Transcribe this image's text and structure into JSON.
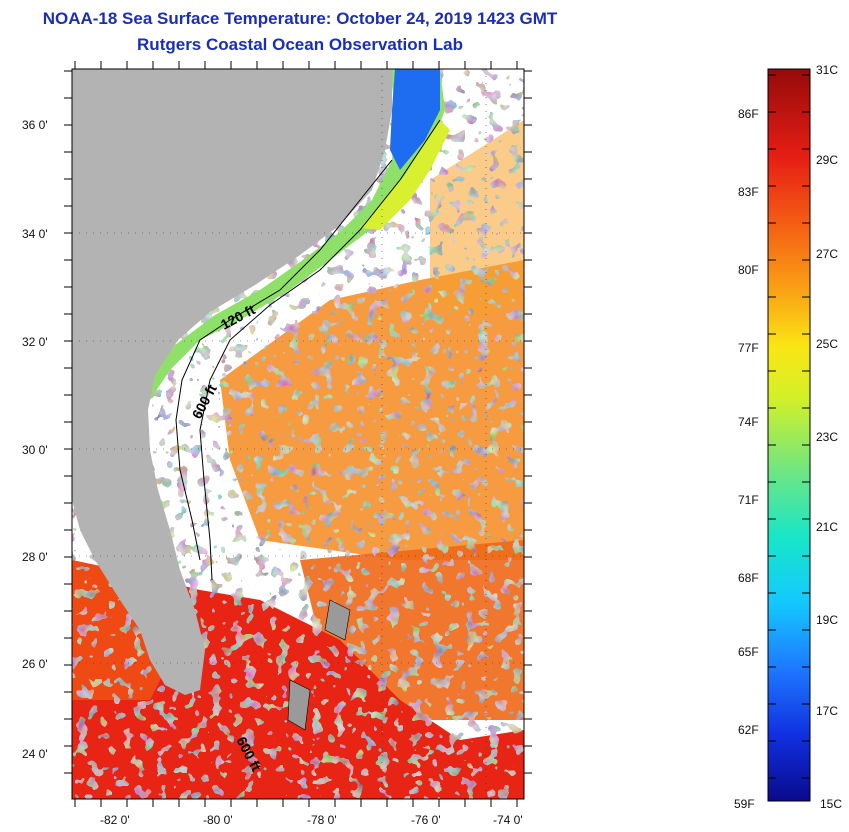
{
  "header": {
    "title": "NOAA-18 Sea Surface Temperature:  October 24, 2019 1423 GMT",
    "subtitle": "Rutgers Coastal Ocean Observation Lab"
  },
  "map": {
    "lat_labels": [
      "36 0'",
      "34 0'",
      "32 0'",
      "30 0'",
      "28 0'",
      "26 0'",
      "24 0'"
    ],
    "lon_labels": [
      "-82 0'",
      "-80 0'",
      "-78 0'",
      "-76 0'",
      "-74 0'"
    ],
    "contours": [
      "120 ft",
      "600 ft",
      "600 ft"
    ],
    "land_color": "#b3b3b3",
    "cloud_color": "#ffffff"
  },
  "colorbar": {
    "fahrenheit": [
      "86F",
      "83F",
      "80F",
      "77F",
      "74F",
      "71F",
      "68F",
      "65F",
      "62F",
      "59F"
    ],
    "celsius": [
      "31C",
      "29C",
      "27C",
      "25C",
      "23C",
      "21C",
      "19C",
      "17C",
      "15C"
    ],
    "colors": [
      "#0a0a8c",
      "#1030e0",
      "#1e78ff",
      "#14c8ff",
      "#18e6c8",
      "#6ee682",
      "#d2f028",
      "#fae614",
      "#faa014",
      "#f56414",
      "#e61e14",
      "#960a0a"
    ]
  }
}
